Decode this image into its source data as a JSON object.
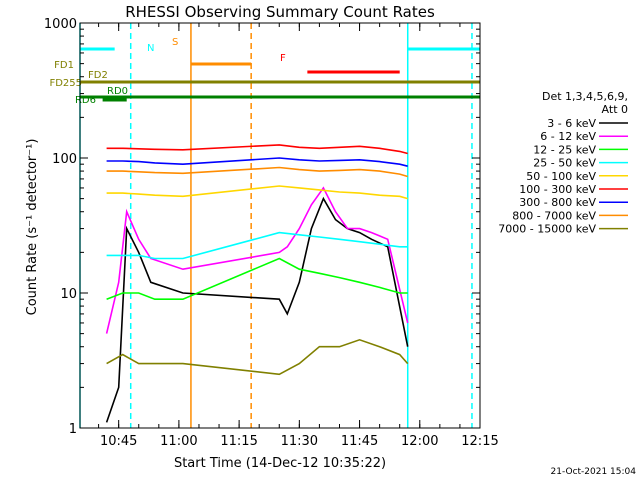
{
  "chart_data": {
    "type": "line",
    "title": "RHESSI Observing Summary Count Rates",
    "xlabel": "Start Time (14-Dec-12 10:35:22)",
    "ylabel": "Count Rate (s⁻¹ detector⁻¹)",
    "y_scale": "log",
    "ylim": [
      1,
      1000
    ],
    "xlim": [
      "10:35:22",
      "12:15:00"
    ],
    "x_ticks": [
      "10:45",
      "11:00",
      "11:15",
      "11:30",
      "11:45",
      "12:00",
      "12:15"
    ],
    "y_ticks": [
      "1",
      "10",
      "100",
      "1000"
    ],
    "legend_header": [
      "Det 1,3,4,5,6,9,",
      "Att 0"
    ],
    "legend_position": "right",
    "timestamp": "21-Oct-2021 15:04",
    "series": [
      {
        "name": "3 - 6 keV",
        "color": "#000000",
        "t": [
          "10:42",
          "10:45",
          "10:47",
          "10:50",
          "10:53",
          "11:01",
          "11:25",
          "11:27",
          "11:30",
          "11:33",
          "11:36",
          "11:39",
          "11:42",
          "11:45",
          "11:48",
          "11:52",
          "11:57"
        ],
        "values": [
          1.1,
          2,
          30,
          20,
          12,
          10,
          9,
          7,
          12,
          30,
          50,
          35,
          30,
          28,
          25,
          22,
          4
        ]
      },
      {
        "name": "6 - 12 keV",
        "color": "#ff00ff",
        "t": [
          "10:42",
          "10:45",
          "10:47",
          "10:50",
          "10:53",
          "11:01",
          "11:25",
          "11:27",
          "11:30",
          "11:33",
          "11:36",
          "11:39",
          "11:42",
          "11:45",
          "11:48",
          "11:52",
          "11:57"
        ],
        "values": [
          5,
          12,
          40,
          25,
          18,
          15,
          20,
          22,
          30,
          45,
          60,
          40,
          30,
          30,
          28,
          25,
          6
        ]
      },
      {
        "name": "12 - 25 keV",
        "color": "#00ff00",
        "t": [
          "10:42",
          "10:46",
          "10:50",
          "10:54",
          "11:01",
          "11:25",
          "11:30",
          "11:35",
          "11:40",
          "11:45",
          "11:50",
          "11:55",
          "11:57"
        ],
        "values": [
          9,
          10,
          10,
          9,
          9,
          18,
          15,
          14,
          13,
          12,
          11,
          10,
          10
        ]
      },
      {
        "name": "25 - 50 keV",
        "color": "#00ffff",
        "t": [
          "10:42",
          "10:46",
          "10:50",
          "10:54",
          "11:01",
          "11:25",
          "11:30",
          "11:35",
          "11:40",
          "11:45",
          "11:50",
          "11:55",
          "11:57"
        ],
        "values": [
          19,
          19,
          19,
          18,
          18,
          28,
          27,
          26,
          25,
          24,
          23,
          22,
          22
        ]
      },
      {
        "name": "50 - 100 keV",
        "color": "#ffd700",
        "t": [
          "10:42",
          "10:46",
          "10:50",
          "10:54",
          "11:01",
          "11:25",
          "11:30",
          "11:35",
          "11:40",
          "11:45",
          "11:50",
          "11:55",
          "11:57"
        ],
        "values": [
          55,
          55,
          54,
          53,
          52,
          62,
          60,
          58,
          56,
          55,
          53,
          52,
          50
        ]
      },
      {
        "name": "100 - 300 keV",
        "color": "#ff0000",
        "t": [
          "10:42",
          "10:46",
          "10:50",
          "10:54",
          "11:01",
          "11:25",
          "11:30",
          "11:35",
          "11:40",
          "11:45",
          "11:50",
          "11:55",
          "11:57"
        ],
        "values": [
          118,
          118,
          117,
          116,
          115,
          125,
          120,
          118,
          120,
          122,
          118,
          112,
          108
        ]
      },
      {
        "name": "300 - 800 keV",
        "color": "#0000ff",
        "t": [
          "10:42",
          "10:46",
          "10:50",
          "10:54",
          "11:01",
          "11:25",
          "11:30",
          "11:35",
          "11:40",
          "11:45",
          "11:50",
          "11:55",
          "11:57"
        ],
        "values": [
          95,
          95,
          94,
          92,
          90,
          100,
          97,
          95,
          96,
          97,
          94,
          90,
          87
        ]
      },
      {
        "name": "800 - 7000 keV",
        "color": "#ff8c00",
        "t": [
          "10:42",
          "10:46",
          "10:50",
          "10:54",
          "11:01",
          "11:25",
          "11:30",
          "11:35",
          "11:40",
          "11:45",
          "11:50",
          "11:55",
          "11:57"
        ],
        "values": [
          80,
          80,
          79,
          78,
          77,
          85,
          82,
          80,
          81,
          82,
          80,
          76,
          73
        ]
      },
      {
        "name": "7000 - 15000 keV",
        "color": "#808000",
        "t": [
          "10:42",
          "10:46",
          "10:50",
          "10:54",
          "11:01",
          "11:25",
          "11:30",
          "11:35",
          "11:40",
          "11:45",
          "11:50",
          "11:55",
          "11:57"
        ],
        "values": [
          3,
          3.5,
          3,
          3,
          3,
          2.5,
          3,
          4,
          4,
          4.5,
          4,
          3.5,
          3
        ]
      }
    ],
    "flag_bars": [
      {
        "label": "N",
        "color": "#00ffff",
        "segments": [
          [
            "10:35:22",
            "10:44"
          ],
          [
            "11:57",
            "12:15"
          ]
        ]
      },
      {
        "label": "S",
        "color": "#ff8c00",
        "segments": [
          [
            "11:03",
            "11:18"
          ]
        ]
      },
      {
        "label": "F",
        "color": "#ff0000",
        "segments": [
          [
            "11:32",
            "11:55"
          ]
        ]
      },
      {
        "label": "FD1",
        "color": "#808000",
        "segments": []
      },
      {
        "label": "FD2",
        "color": "#808000",
        "segments": [
          [
            "10:35:22",
            "12:15"
          ]
        ]
      },
      {
        "label": "FD255",
        "color": "#808000",
        "segments": []
      },
      {
        "label": "RD0",
        "color": "#008000",
        "segments": [
          [
            "10:35:22",
            "12:15"
          ]
        ]
      },
      {
        "label": "RD6",
        "color": "#008000",
        "segments": [
          [
            "10:41",
            "10:47"
          ]
        ]
      }
    ],
    "vlines": [
      {
        "t": "10:35:22",
        "color": "#00ffff",
        "dash": false
      },
      {
        "t": "10:48",
        "color": "#00ffff",
        "dash": true
      },
      {
        "t": "11:03",
        "color": "#ff8c00",
        "dash": false
      },
      {
        "t": "11:18",
        "color": "#ff8c00",
        "dash": true
      },
      {
        "t": "11:57",
        "color": "#00ffff",
        "dash": false
      },
      {
        "t": "12:13",
        "color": "#00ffff",
        "dash": true
      }
    ]
  }
}
